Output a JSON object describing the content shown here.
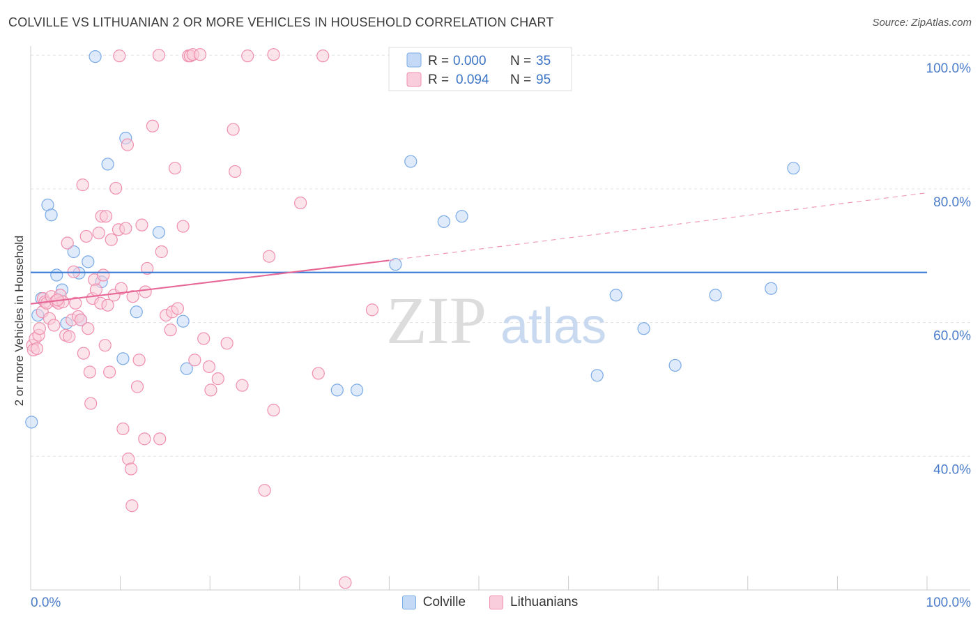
{
  "header": {
    "title": "COLVILLE VS LITHUANIAN 2 OR MORE VEHICLES IN HOUSEHOLD CORRELATION CHART",
    "source": "Source: ZipAtlas.com"
  },
  "watermark": {
    "zip": "ZIP",
    "atlas": "atlas"
  },
  "legend_top": {
    "rows": [
      {
        "r_label": "R =",
        "r_value": "0.000",
        "n_label": "N =",
        "n_value": "35",
        "color": "#7aaae6",
        "fill": "#c4d9f5"
      },
      {
        "r_label": "R =",
        "r_value": "0.094",
        "n_label": "N =",
        "n_value": "95",
        "color": "#ef8fb0",
        "fill": "#f9cddb"
      }
    ]
  },
  "legend_bottom": [
    {
      "label": "Colville",
      "color": "#7aaae6",
      "fill": "#c4d9f5"
    },
    {
      "label": "Lithuanians",
      "color": "#ef8fb0",
      "fill": "#f9cddb"
    }
  ],
  "chart_data": {
    "type": "scatter",
    "title": "COLVILLE VS LITHUANIAN 2 OR MORE VEHICLES IN HOUSEHOLD CORRELATION CHART",
    "xlabel": "",
    "ylabel": "2 or more Vehicles in Household",
    "xlim": [
      0,
      100
    ],
    "ylim": [
      20,
      102
    ],
    "x_tick_labels": [
      {
        "value": 0,
        "label": "0.0%"
      },
      {
        "value": 100,
        "label": "100.0%"
      }
    ],
    "y_tick_labels": [
      {
        "value": 100,
        "label": "100.0%"
      },
      {
        "value": 80,
        "label": "80.0%"
      },
      {
        "value": 60,
        "label": "60.0%"
      },
      {
        "value": 40,
        "label": "40.0%"
      }
    ],
    "grid": true,
    "legend_position": "top-center",
    "series": [
      {
        "name": "Colville",
        "color": "#7aaae6",
        "fill": "#c4d9f5",
        "trend": {
          "type": "solid",
          "x": [
            0,
            100
          ],
          "y": [
            67.5,
            67.5
          ]
        },
        "points": [
          [
            0.1,
            45.1
          ],
          [
            0.8,
            61.1
          ],
          [
            1.2,
            63.6
          ],
          [
            1.9,
            77.6
          ],
          [
            2.3,
            76.1
          ],
          [
            2.9,
            67.1
          ],
          [
            3.5,
            64.9
          ],
          [
            4.0,
            59.9
          ],
          [
            4.8,
            70.6
          ],
          [
            5.4,
            67.4
          ],
          [
            5.6,
            60.4
          ],
          [
            6.4,
            69.1
          ],
          [
            7.2,
            99.8
          ],
          [
            7.9,
            66.1
          ],
          [
            8.6,
            83.7
          ],
          [
            10.3,
            54.6
          ],
          [
            10.6,
            87.6
          ],
          [
            11.8,
            61.6
          ],
          [
            14.3,
            73.5
          ],
          [
            17.0,
            60.2
          ],
          [
            17.4,
            53.1
          ],
          [
            34.2,
            49.9
          ],
          [
            36.4,
            49.9
          ],
          [
            40.7,
            68.7
          ],
          [
            42.4,
            84.1
          ],
          [
            46.1,
            75.1
          ],
          [
            48.1,
            75.9
          ],
          [
            54.6,
            99.5
          ],
          [
            63.2,
            52.1
          ],
          [
            65.3,
            64.1
          ],
          [
            68.4,
            59.1
          ],
          [
            71.9,
            53.6
          ],
          [
            76.4,
            64.1
          ],
          [
            82.6,
            65.1
          ],
          [
            85.1,
            83.1
          ]
        ]
      },
      {
        "name": "Lithuanians",
        "color": "#ef8fb0",
        "fill": "#f9cddb",
        "trend": {
          "type": "solid-then-dashed",
          "x": [
            0,
            40,
            100
          ],
          "y": [
            62.8,
            69.3,
            79.4
          ]
        },
        "points": [
          [
            0.2,
            56.6
          ],
          [
            0.3,
            55.9
          ],
          [
            0.5,
            57.6
          ],
          [
            0.7,
            56.1
          ],
          [
            0.9,
            58.1
          ],
          [
            1.0,
            59.1
          ],
          [
            1.3,
            61.6
          ],
          [
            1.4,
            63.6
          ],
          [
            1.6,
            63.1
          ],
          [
            1.8,
            62.9
          ],
          [
            2.1,
            60.6
          ],
          [
            2.3,
            63.9
          ],
          [
            2.6,
            59.6
          ],
          [
            2.8,
            63.2
          ],
          [
            3.1,
            62.9
          ],
          [
            3.3,
            64.1
          ],
          [
            3.6,
            63.1
          ],
          [
            3.9,
            58.1
          ],
          [
            4.1,
            71.9
          ],
          [
            4.3,
            57.9
          ],
          [
            4.6,
            60.4
          ],
          [
            4.8,
            67.6
          ],
          [
            5.0,
            62.9
          ],
          [
            5.3,
            60.9
          ],
          [
            5.6,
            60.4
          ],
          [
            5.8,
            80.6
          ],
          [
            5.9,
            55.4
          ],
          [
            6.2,
            72.9
          ],
          [
            6.4,
            59.1
          ],
          [
            6.6,
            52.6
          ],
          [
            6.7,
            47.9
          ],
          [
            6.9,
            63.6
          ],
          [
            7.1,
            66.4
          ],
          [
            7.3,
            64.9
          ],
          [
            7.6,
            73.4
          ],
          [
            7.8,
            62.9
          ],
          [
            7.9,
            75.9
          ],
          [
            8.1,
            67.1
          ],
          [
            8.3,
            56.6
          ],
          [
            8.4,
            75.9
          ],
          [
            8.6,
            62.6
          ],
          [
            8.8,
            52.6
          ],
          [
            9.0,
            72.4
          ],
          [
            9.3,
            64.1
          ],
          [
            9.5,
            80.1
          ],
          [
            9.8,
            73.9
          ],
          [
            10.1,
            65.1
          ],
          [
            10.3,
            44.1
          ],
          [
            10.6,
            74.1
          ],
          [
            10.8,
            86.6
          ],
          [
            10.9,
            39.6
          ],
          [
            11.2,
            38.1
          ],
          [
            11.3,
            32.6
          ],
          [
            11.9,
            50.4
          ],
          [
            12.1,
            54.4
          ],
          [
            12.4,
            74.6
          ],
          [
            12.7,
            42.6
          ],
          [
            12.8,
            64.6
          ],
          [
            13.0,
            68.1
          ],
          [
            13.6,
            89.4
          ],
          [
            14.4,
            42.6
          ],
          [
            14.6,
            70.6
          ],
          [
            15.1,
            61.1
          ],
          [
            15.6,
            58.9
          ],
          [
            15.8,
            61.6
          ],
          [
            16.1,
            83.1
          ],
          [
            16.4,
            62.1
          ],
          [
            17.0,
            74.4
          ],
          [
            17.6,
            99.9
          ],
          [
            17.8,
            99.9
          ],
          [
            18.1,
            100.1
          ],
          [
            18.3,
            54.4
          ],
          [
            18.9,
            100.1
          ],
          [
            19.3,
            57.6
          ],
          [
            19.9,
            53.4
          ],
          [
            20.1,
            49.9
          ],
          [
            20.9,
            51.6
          ],
          [
            21.9,
            56.9
          ],
          [
            22.6,
            88.9
          ],
          [
            22.8,
            82.6
          ],
          [
            23.6,
            50.6
          ],
          [
            24.2,
            99.9
          ],
          [
            26.1,
            34.9
          ],
          [
            26.6,
            69.9
          ],
          [
            27.1,
            46.9
          ],
          [
            27.1,
            100.1
          ],
          [
            30.1,
            77.9
          ],
          [
            32.1,
            52.4
          ],
          [
            32.6,
            99.9
          ],
          [
            35.1,
            21.1
          ],
          [
            38.1,
            61.9
          ],
          [
            14.3,
            100.0
          ],
          [
            9.9,
            99.9
          ],
          [
            3.0,
            63.4
          ],
          [
            11.4,
            63.9
          ]
        ]
      }
    ]
  }
}
